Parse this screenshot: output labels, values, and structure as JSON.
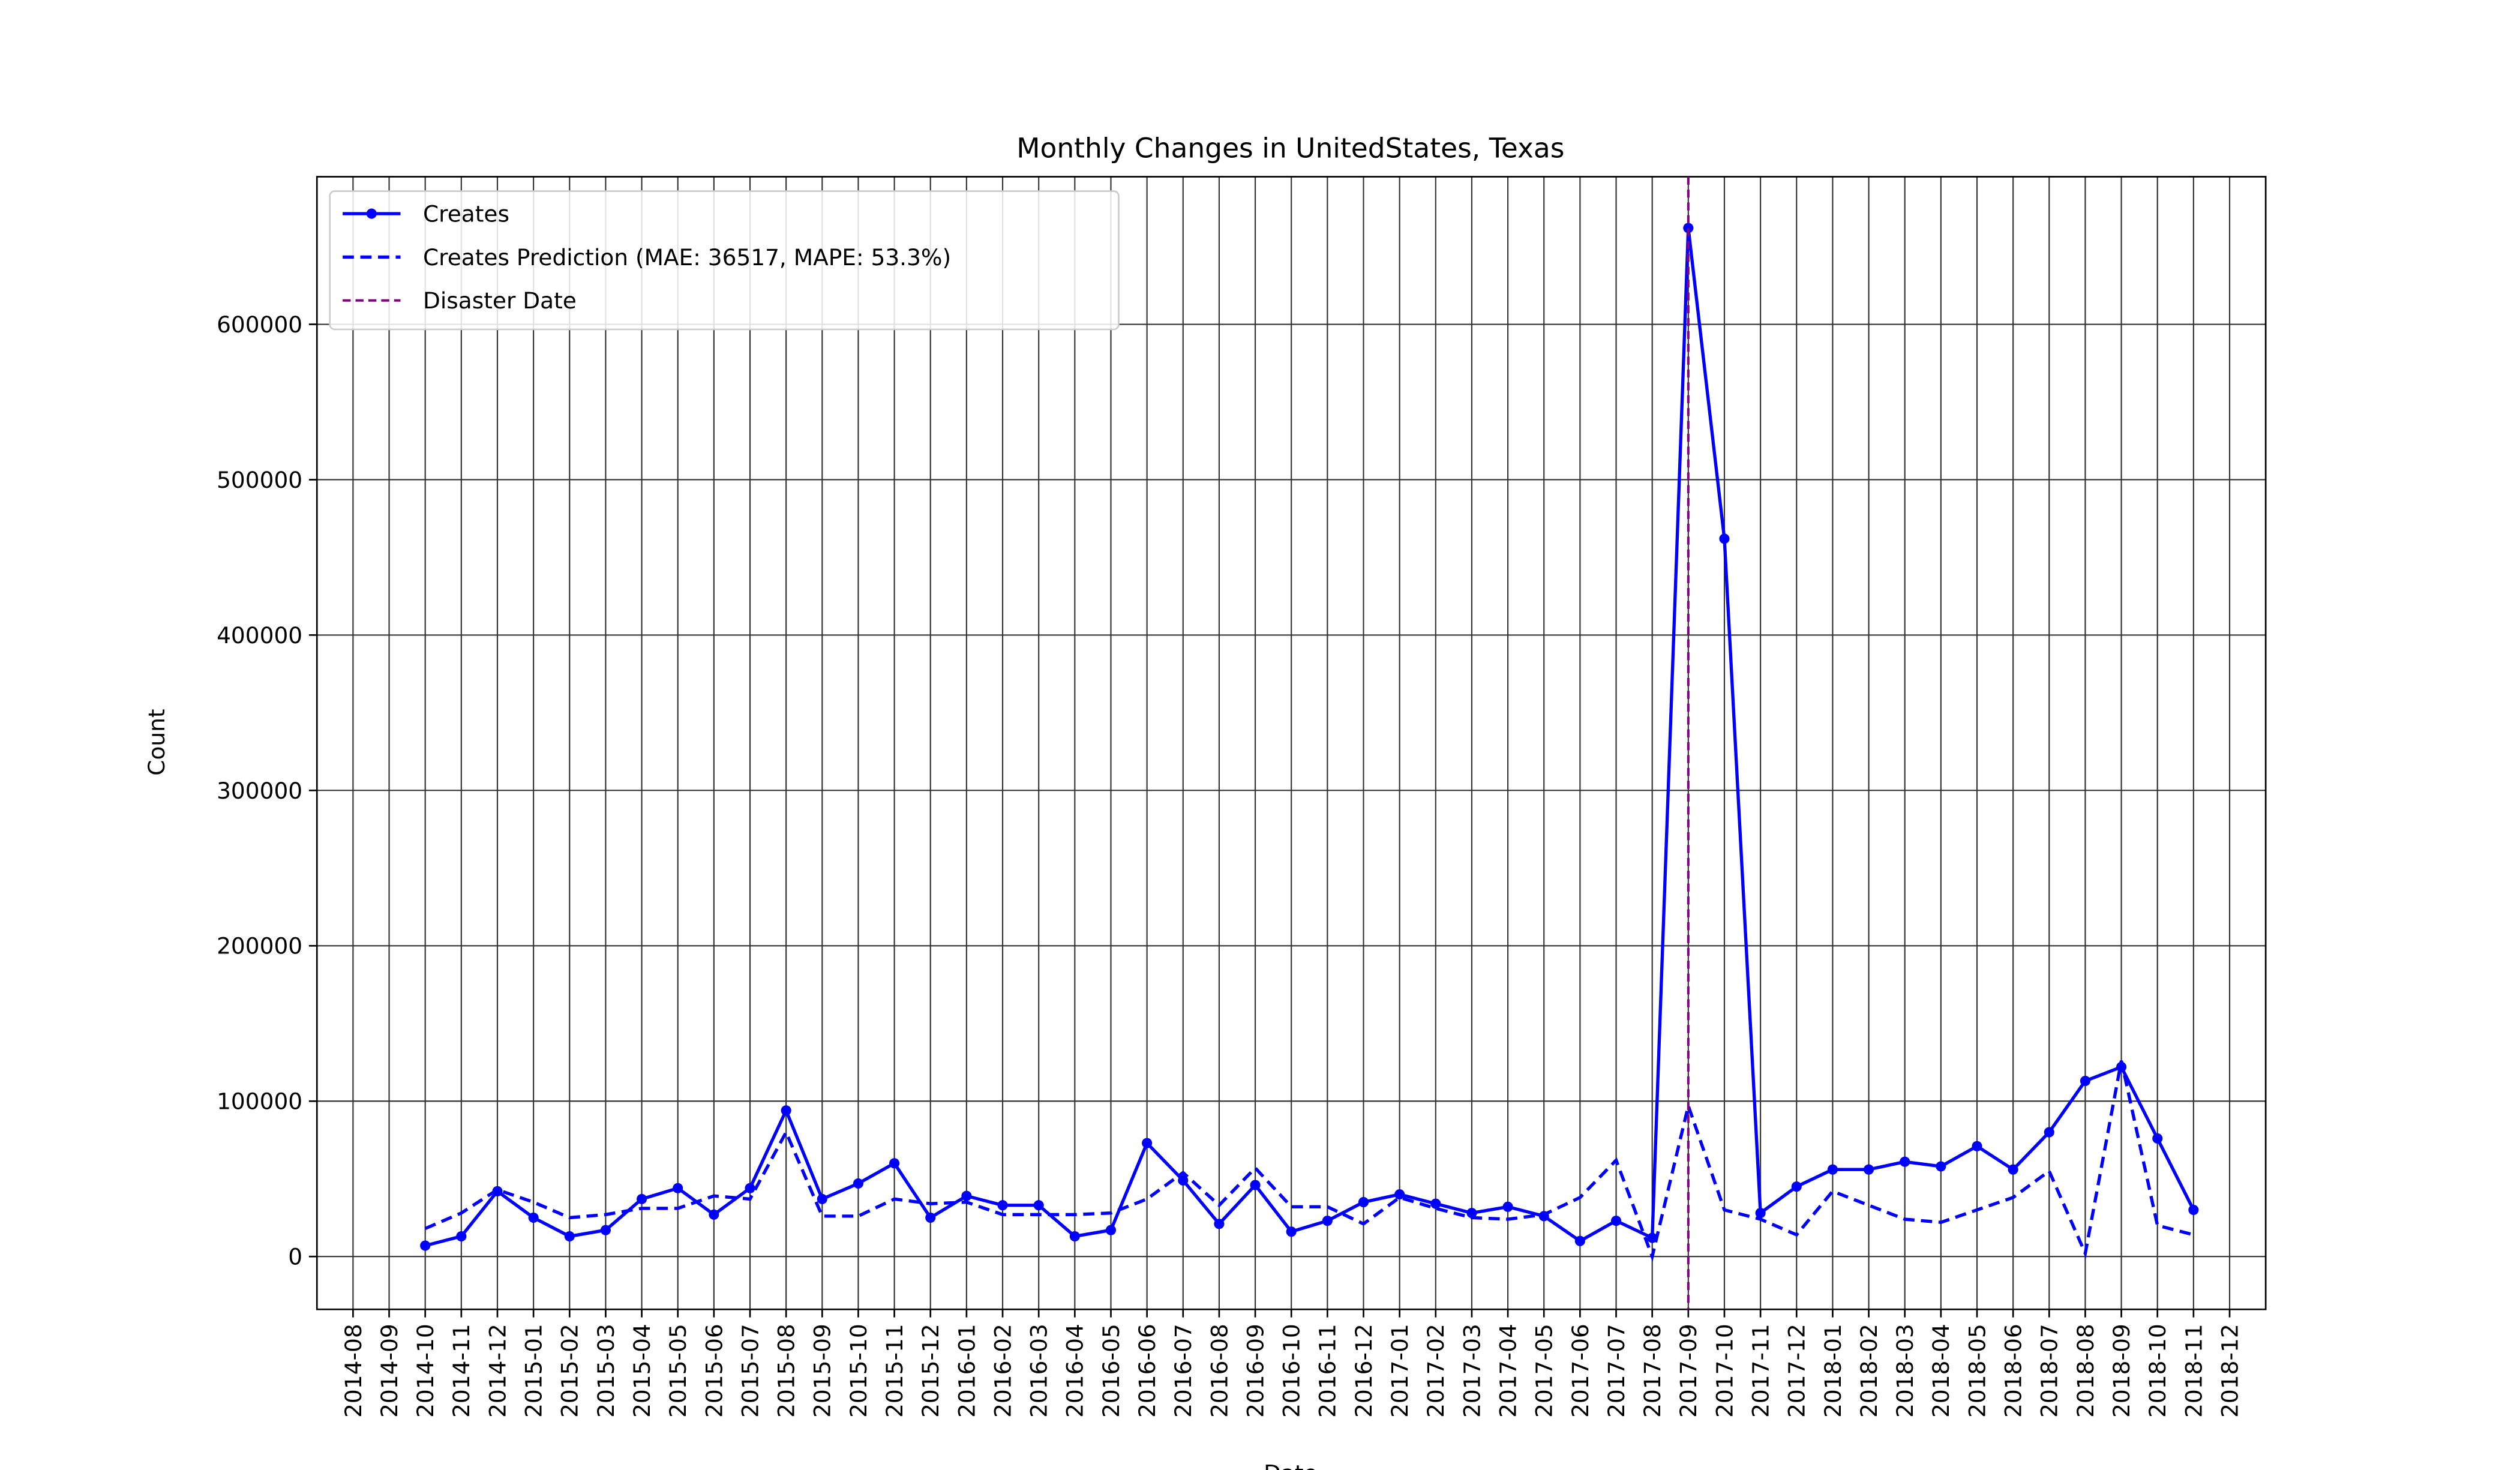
{
  "chart_data": {
    "type": "line",
    "title": "Monthly Changes in UnitedStates, Texas",
    "x_label": "Date",
    "y_label": "Count",
    "x": [
      "2014-10",
      "2014-11",
      "2014-12",
      "2015-01",
      "2015-02",
      "2015-03",
      "2015-04",
      "2015-05",
      "2015-06",
      "2015-07",
      "2015-08",
      "2015-09",
      "2015-10",
      "2015-11",
      "2015-12",
      "2016-01",
      "2016-02",
      "2016-03",
      "2016-04",
      "2016-05",
      "2016-06",
      "2016-07",
      "2016-08",
      "2016-09",
      "2016-10",
      "2016-11",
      "2016-12",
      "2017-01",
      "2017-02",
      "2017-03",
      "2017-04",
      "2017-05",
      "2017-06",
      "2017-07",
      "2017-08",
      "2017-09",
      "2017-10",
      "2017-11",
      "2017-12",
      "2018-01",
      "2018-02",
      "2018-03",
      "2018-04",
      "2018-05",
      "2018-06",
      "2018-07",
      "2018-08",
      "2018-09",
      "2018-10",
      "2018-11"
    ],
    "series": [
      {
        "name": "Creates",
        "color": "#0000ff",
        "style": "solid",
        "marker": true,
        "values": [
          7000,
          13000,
          42000,
          25000,
          13000,
          17000,
          37000,
          44000,
          27000,
          44000,
          94000,
          37000,
          47000,
          60000,
          25000,
          39000,
          33000,
          33000,
          13000,
          17000,
          73000,
          49000,
          21000,
          46000,
          16000,
          23000,
          35000,
          40000,
          34000,
          28000,
          32000,
          26000,
          10000,
          23000,
          12000,
          662000,
          462000,
          28000,
          45000,
          56000,
          56000,
          61000,
          58000,
          71000,
          56000,
          80000,
          113000,
          122000,
          76000,
          30000
        ]
      },
      {
        "name": "Creates Prediction (MAE: 36517, MAPE: 53.3%)",
        "color": "#0000ff",
        "style": "dashed",
        "marker": false,
        "values": [
          18000,
          28000,
          43000,
          35000,
          25000,
          27000,
          31000,
          31000,
          39000,
          37000,
          80000,
          26000,
          26000,
          37000,
          34000,
          35000,
          27000,
          27000,
          27000,
          28000,
          37000,
          54000,
          33000,
          57000,
          32000,
          32000,
          21000,
          38000,
          31000,
          25000,
          24000,
          27000,
          38000,
          62000,
          0,
          97000,
          30000,
          24000,
          14000,
          42000,
          33000,
          24000,
          22000,
          30000,
          38000,
          55000,
          2000,
          126000,
          20000,
          14000
        ]
      }
    ],
    "disaster": {
      "name": "Disaster Date",
      "x": "2017-09",
      "color": "#800080"
    },
    "xlim": [
      "2014-07",
      "2019-01"
    ],
    "xticks": [
      "2014-08",
      "2014-09",
      "2014-10",
      "2014-11",
      "2014-12",
      "2015-01",
      "2015-02",
      "2015-03",
      "2015-04",
      "2015-05",
      "2015-06",
      "2015-07",
      "2015-08",
      "2015-09",
      "2015-10",
      "2015-11",
      "2015-12",
      "2016-01",
      "2016-02",
      "2016-03",
      "2016-04",
      "2016-05",
      "2016-06",
      "2016-07",
      "2016-08",
      "2016-09",
      "2016-10",
      "2016-11",
      "2016-12",
      "2017-01",
      "2017-02",
      "2017-03",
      "2017-04",
      "2017-05",
      "2017-06",
      "2017-07",
      "2017-08",
      "2017-09",
      "2017-10",
      "2017-11",
      "2017-12",
      "2018-01",
      "2018-02",
      "2018-03",
      "2018-04",
      "2018-05",
      "2018-06",
      "2018-07",
      "2018-08",
      "2018-09",
      "2018-10",
      "2018-11",
      "2018-12"
    ],
    "ylim": [
      -34000,
      695000
    ],
    "yticks": [
      0,
      100000,
      200000,
      300000,
      400000,
      500000,
      600000
    ],
    "grid": true,
    "legend": "upper left"
  }
}
